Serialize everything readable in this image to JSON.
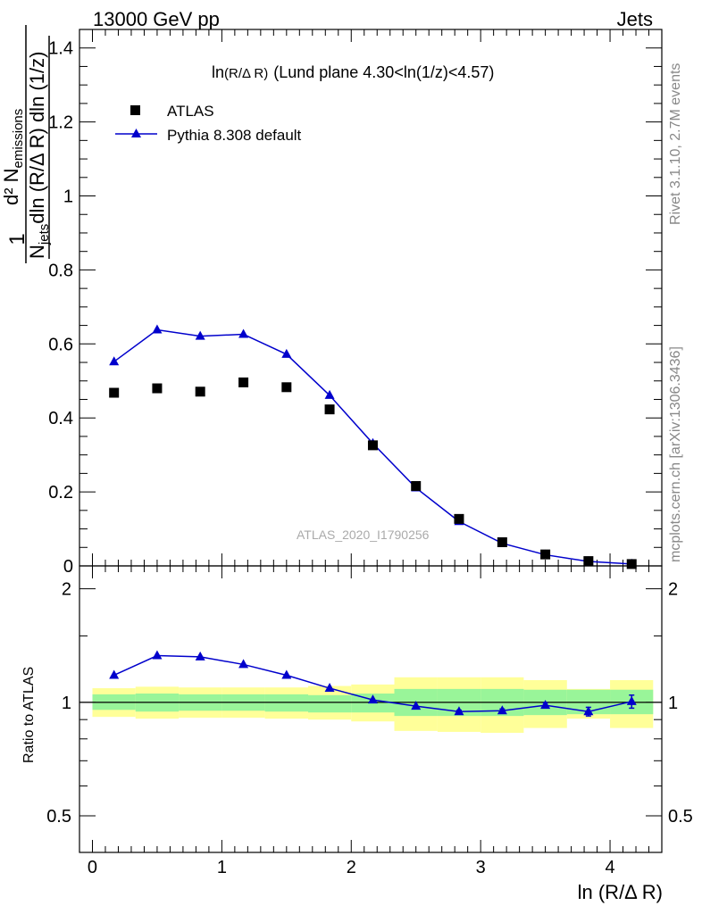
{
  "header": {
    "left": "13000 GeV pp",
    "right": "Jets"
  },
  "side_labels": {
    "rivet": "Rivet 3.1.10,  2.7M events",
    "mcplots": "mcplots.cern.ch [arXiv:1306.3436]"
  },
  "watermark": "ATLAS_2020_I1790256",
  "chart_data": [
    {
      "type": "scatter",
      "panel": "main",
      "title_main": "ln",
      "title_paren": "(R/Δ R)",
      "title_rest": "(Lund plane 4.30<ln(1/z)<4.57)",
      "xlabel": "ln (R/Δ R)",
      "ylabel_num": "d² N",
      "ylabel_num_sub": "emissions",
      "ylabel_den": "N",
      "ylabel_den_sub": "jets",
      "ylabel_den_rest": "dln (R/Δ R) dln (1/z)",
      "ylabel_prefix": "1",
      "xlim": [
        -0.1,
        4.4
      ],
      "ylim": [
        0,
        1.45
      ],
      "yticks": [
        "0",
        "0.2",
        "0.4",
        "0.6",
        "0.8",
        "1",
        "1.2",
        "1.4"
      ],
      "x": [
        0.167,
        0.5,
        0.833,
        1.167,
        1.5,
        1.833,
        2.167,
        2.5,
        2.833,
        3.167,
        3.5,
        3.833,
        4.167
      ],
      "series": [
        {
          "name": "ATLAS",
          "color": "#000000",
          "marker": "square",
          "values": [
            0.468,
            0.48,
            0.471,
            0.496,
            0.483,
            0.423,
            0.326,
            0.216,
            0.127,
            0.064,
            0.031,
            0.013,
            0.005
          ]
        },
        {
          "name": "Pythia 8.308 default",
          "color": "#0000cc",
          "marker": "triangle",
          "line": true,
          "values": [
            0.552,
            0.638,
            0.621,
            0.626,
            0.572,
            0.461,
            0.331,
            0.211,
            0.12,
            0.061,
            0.03,
            0.012,
            0.005
          ]
        }
      ],
      "legend_position": "top-left"
    },
    {
      "type": "line",
      "panel": "ratio",
      "ylabel": "Ratio to ATLAS",
      "xlim": [
        -0.1,
        4.4
      ],
      "ylim": [
        0.4,
        2.3
      ],
      "log_y": true,
      "xticks": [
        "0",
        "1",
        "2",
        "3",
        "4"
      ],
      "yticks": [
        "0.5",
        "1",
        "2"
      ],
      "bin_edges": [
        0,
        0.333,
        0.667,
        1.0,
        1.333,
        1.667,
        2.0,
        2.333,
        2.667,
        3.0,
        3.333,
        3.667,
        4.0,
        4.333
      ],
      "band_inner_color": "#99f599",
      "band_outer_color": "#ffff99",
      "band_inner": [
        [
          0.955,
          1.05
        ],
        [
          0.945,
          1.055
        ],
        [
          0.95,
          1.05
        ],
        [
          0.95,
          1.05
        ],
        [
          0.945,
          1.05
        ],
        [
          0.94,
          1.045
        ],
        [
          0.94,
          1.055
        ],
        [
          0.92,
          1.085
        ],
        [
          0.92,
          1.085
        ],
        [
          0.92,
          1.085
        ],
        [
          0.925,
          1.08
        ],
        [
          0.93,
          1.08
        ],
        [
          0.93,
          1.08
        ]
      ],
      "band_outer": [
        [
          0.915,
          1.09
        ],
        [
          0.905,
          1.1
        ],
        [
          0.91,
          1.095
        ],
        [
          0.91,
          1.095
        ],
        [
          0.905,
          1.095
        ],
        [
          0.9,
          1.105
        ],
        [
          0.89,
          1.115
        ],
        [
          0.84,
          1.165
        ],
        [
          0.835,
          1.165
        ],
        [
          0.83,
          1.165
        ],
        [
          0.855,
          1.145
        ],
        [
          0.905,
          1.085
        ],
        [
          0.855,
          1.145
        ]
      ],
      "ratio_series": {
        "name": "Pythia 8.308 default",
        "color": "#0000cc",
        "values": [
          1.18,
          1.33,
          1.32,
          1.26,
          1.18,
          1.09,
          1.015,
          0.977,
          0.945,
          0.95,
          0.982,
          0.945,
          1.005
        ],
        "errors": [
          0.005,
          0.005,
          0.005,
          0.005,
          0.005,
          0.005,
          0.005,
          0.005,
          0.008,
          0.01,
          0.015,
          0.025,
          0.04
        ]
      }
    }
  ]
}
